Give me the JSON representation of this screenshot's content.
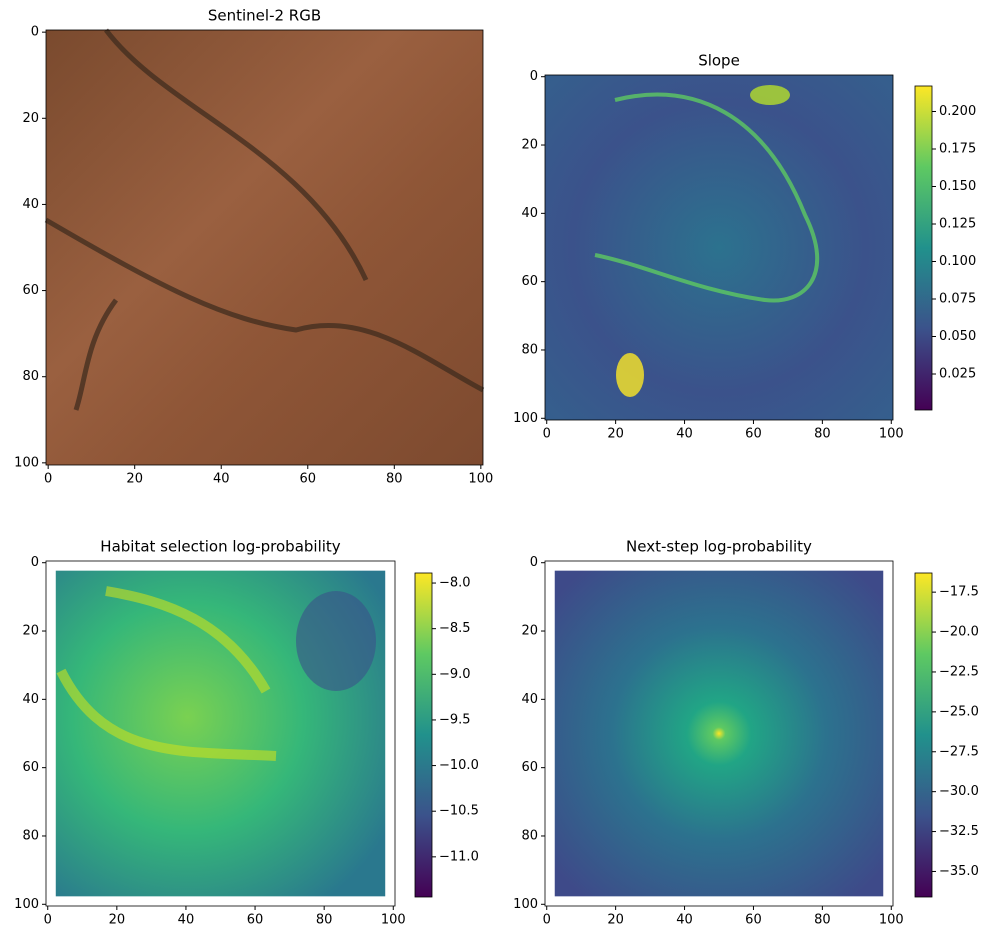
{
  "chart_data": [
    {
      "type": "image",
      "title": "Sentinel-2 RGB",
      "xlim": [
        -0.5,
        100.5
      ],
      "ylim": [
        100.5,
        -0.5
      ],
      "xticks": [
        0,
        20,
        40,
        60,
        80,
        100
      ],
      "yticks": [
        0,
        20,
        40,
        60,
        80,
        100
      ]
    },
    {
      "type": "image",
      "title": "Slope",
      "xlim": [
        -0.5,
        100.5
      ],
      "ylim": [
        100.5,
        -0.5
      ],
      "xticks": [
        0,
        20,
        40,
        60,
        80,
        100
      ],
      "yticks": [
        0,
        20,
        40,
        60,
        80,
        100
      ],
      "colorbar": {
        "lim": [
          0.001,
          0.217
        ],
        "ticks": [
          0.025,
          {
            "value": 0.05,
            "label": "0.050"
          },
          0.075,
          {
            "value": 0.1,
            "label": "0.100"
          },
          0.125,
          {
            "value": 0.15,
            "label": "0.150"
          },
          0.175,
          {
            "value": 0.2,
            "label": "0.200"
          }
        ]
      }
    },
    {
      "type": "image",
      "title": "Habitat selection log-probability",
      "xlim": [
        -0.5,
        100.5
      ],
      "ylim": [
        100.5,
        -0.5
      ],
      "xticks": [
        0,
        20,
        40,
        60,
        80,
        100
      ],
      "yticks": [
        0,
        20,
        40,
        60,
        80,
        100
      ],
      "colorbar": {
        "lim": [
          -11.44,
          -7.89
        ],
        "ticks": [
          {
            "value": -8,
            "label": "−8.0"
          },
          {
            "value": -8.5,
            "label": "−8.5"
          },
          {
            "value": -9,
            "label": "−9.0"
          },
          {
            "value": -9.5,
            "label": "−9.5"
          },
          {
            "value": -10,
            "label": "−10.0"
          },
          {
            "value": -10.5,
            "label": "−10.5"
          },
          {
            "value": -11,
            "label": "−11.0"
          }
        ]
      }
    },
    {
      "type": "image",
      "title": "Next-step log-probability",
      "xlim": [
        -0.5,
        100.5
      ],
      "ylim": [
        100.5,
        -0.5
      ],
      "xticks": [
        0,
        20,
        40,
        60,
        80,
        100
      ],
      "yticks": [
        0,
        20,
        40,
        60,
        80,
        100
      ],
      "colorbar": {
        "lim": [
          -36.6,
          -16.3
        ],
        "ticks": [
          {
            "value": -17.5,
            "label": "−17.5"
          },
          {
            "value": -20,
            "label": "−20.0"
          },
          {
            "value": -22.5,
            "label": "−22.5"
          },
          {
            "value": -25,
            "label": "−25.0"
          },
          {
            "value": -27.5,
            "label": "−27.5"
          },
          {
            "value": -30,
            "label": "−30.0"
          },
          {
            "value": -32.5,
            "label": "−32.5"
          },
          {
            "value": -35,
            "label": "−35.0"
          }
        ]
      }
    }
  ]
}
